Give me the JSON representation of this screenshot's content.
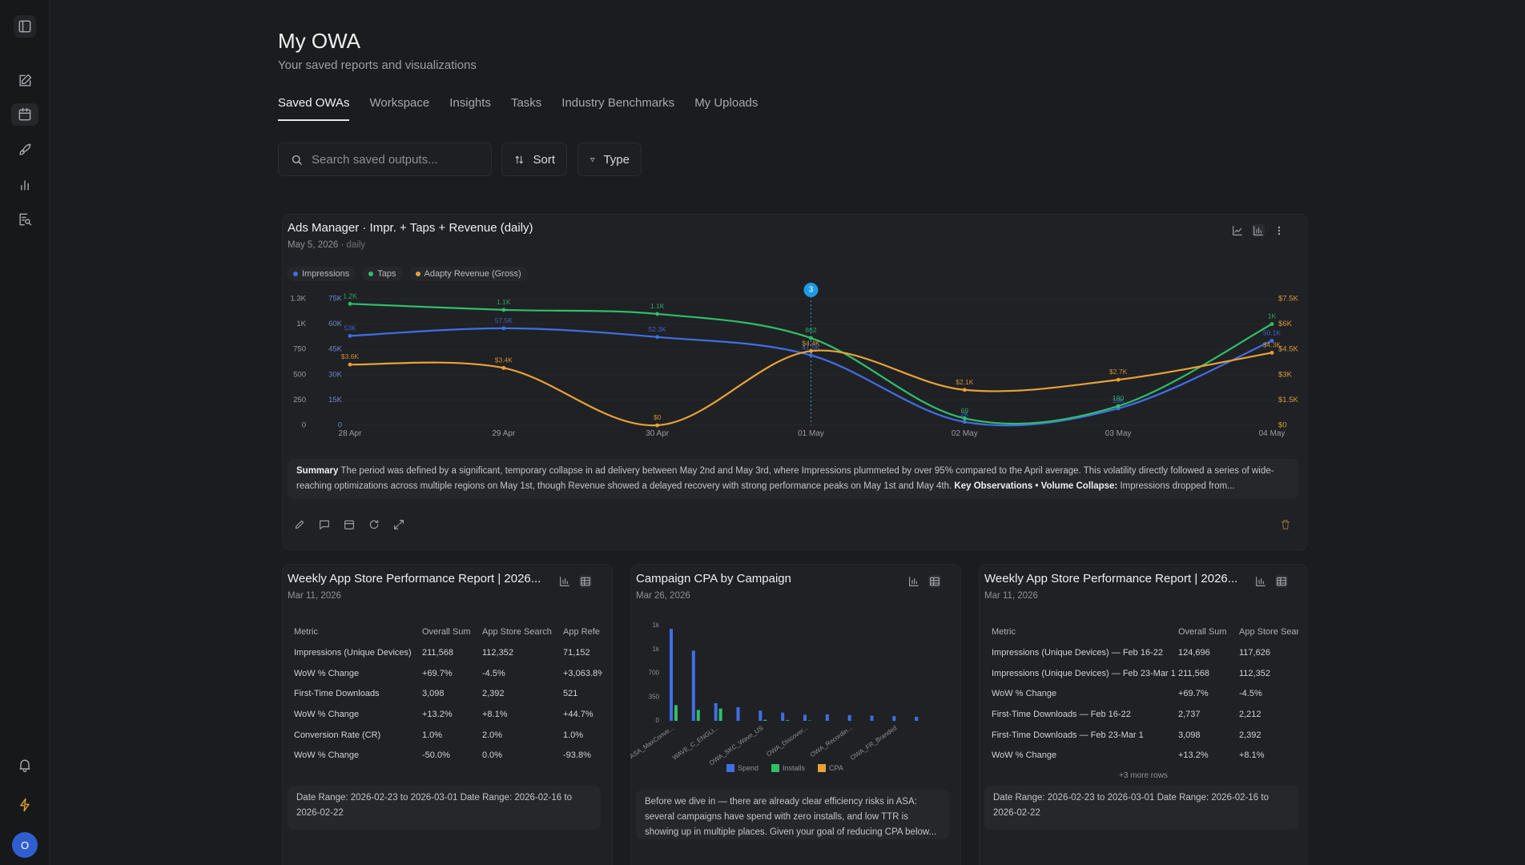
{
  "sidebar": {
    "avatar": "O"
  },
  "header": {
    "title": "My OWA",
    "subtitle": "Your saved reports and visualizations"
  },
  "tabs": [
    "Saved OWAs",
    "Workspace",
    "Insights",
    "Tasks",
    "Industry Benchmarks",
    "My Uploads"
  ],
  "toolbar": {
    "search_placeholder": "Search saved outputs...",
    "sort": "Sort",
    "type": "Type"
  },
  "cards": [
    {
      "title": "Ads Manager · Impr. + Taps + Revenue (daily)",
      "date": "May 5, 2026",
      "frequency": "daily",
      "summary": {
        "label": "Summary",
        "text": "The period was defined by a significant, temporary collapse in ad delivery between May 2nd and May 3rd, where Impressions plummeted by over 95% compared to the April average. This volatility directly followed a series of wide-reaching optimizations across multiple regions on May 1st, though Revenue showed a delayed recovery with strong performance peaks on May 1st and May 4th.",
        "key_label": "Key Observations • Volume Collapse:",
        "key_text": "Impressions dropped from..."
      }
    },
    {
      "title": "Weekly App Store Performance Report | 2026...",
      "date": "Mar 11, 2026",
      "table": {
        "columns": [
          "Metric",
          "Overall Sum",
          "App Store Search",
          "App Refe"
        ],
        "rows": [
          [
            "Impressions (Unique Devices)",
            "211,568",
            "112,352",
            "71,152"
          ],
          [
            "WoW % Change",
            "+69.7%",
            "-4.5%",
            "+3,063.8%"
          ],
          [
            "First-Time Downloads",
            "3,098",
            "2,392",
            "521"
          ],
          [
            "WoW % Change",
            "+13.2%",
            "+8.1%",
            "+44.7%"
          ],
          [
            "Conversion Rate (CR)",
            "1.0%",
            "2.0%",
            "1.0%"
          ],
          [
            "WoW % Change",
            "-50.0%",
            "0.0%",
            "-93.8%"
          ]
        ]
      },
      "footer": "Date Range: 2026-02-23 to 2026-03-01 Date Range: 2026-02-16 to 2026-02-22"
    },
    {
      "title": "Campaign CPA by Campaign",
      "date": "Mar 26, 2026",
      "summary": "Before we dive in — there are already clear efficiency risks in ASA: several campaigns have spend with zero installs, and low TTR is showing up in multiple places. Given your goal of reducing CPA below..."
    },
    {
      "title": "Weekly App Store Performance Report | 2026...",
      "date": "Mar 11, 2026",
      "table": {
        "columns": [
          "Metric",
          "Overall Sum",
          "App Store Sear"
        ],
        "rows": [
          [
            "Impressions (Unique Devices) — Feb 16-22",
            "124,696",
            "117,626"
          ],
          [
            "Impressions (Unique Devices) — Feb 23-Mar 1",
            "211,568",
            "112,352"
          ],
          [
            "WoW % Change",
            "+69.7%",
            "-4.5%"
          ],
          [
            "First-Time Downloads — Feb 16-22",
            "2,737",
            "2,212"
          ],
          [
            "First-Time Downloads — Feb 23-Mar 1",
            "3,098",
            "2,392"
          ],
          [
            "WoW % Change",
            "+13.2%",
            "+8.1%"
          ]
        ]
      },
      "more_rows": "+3 more rows",
      "footer": "Date Range: 2026-02-23 to 2026-03-01 Date Range: 2026-02-16 to 2026-02-22"
    }
  ],
  "chart_data": [
    {
      "type": "line",
      "categories": [
        "28 Apr",
        "29 Apr",
        "30 Apr",
        "01 May",
        "02 May",
        "03 May",
        "04 May"
      ],
      "series": [
        {
          "name": "Impressions",
          "color": "#3f6fe3",
          "axis": "y3",
          "values": [
            53000,
            57500,
            52300,
            41500,
            2000,
            10000,
            50100
          ],
          "value_labels": [
            "53K",
            "57.5K",
            "52.3K",
            "41.5K",
            "2K",
            "10K",
            "50.1K"
          ]
        },
        {
          "name": "Taps",
          "color": "#2fbf68",
          "axis": "y",
          "values": [
            1200,
            1140,
            1100,
            862,
            69,
            190,
            1000
          ],
          "value_labels": [
            "1.2K",
            "1.1K",
            "1.1K",
            "862",
            "69",
            "190",
            "1K"
          ]
        },
        {
          "name": "Adapty Revenue (Gross)",
          "color": "#e9a236",
          "axis": "y2",
          "values": [
            3600,
            3400,
            0,
            4400,
            2100,
            2700,
            4300
          ],
          "value_labels": [
            "$3.6K",
            "$3.4K",
            "$0",
            "$4.4K",
            "$2.1K",
            "$2.7K",
            "$4.3K"
          ]
        }
      ],
      "ylim": [
        0,
        1250
      ],
      "yticks": [
        0,
        250,
        500,
        750,
        {
          "value": 1000,
          "label": "1K"
        },
        {
          "value": 1250,
          "label": "1.3K"
        }
      ],
      "y3lim": [
        0,
        75000
      ],
      "y3ticks": [
        0,
        {
          "value": 15000,
          "label": "15K"
        },
        {
          "value": 30000,
          "label": "30K"
        },
        {
          "value": 45000,
          "label": "45K"
        },
        {
          "value": 60000,
          "label": "60K"
        },
        {
          "value": 75000,
          "label": "75K"
        }
      ],
      "y2lim": [
        0,
        7500
      ],
      "y2ticks": [
        {
          "value": 0,
          "label": "$0"
        },
        {
          "value": 1500,
          "label": "$1.5K"
        },
        {
          "value": 3000,
          "label": "$3K"
        },
        {
          "value": 4500,
          "label": "$4.5K"
        },
        {
          "value": 6000,
          "label": "$6K"
        },
        {
          "value": 7500,
          "label": "$7.5K"
        }
      ],
      "annotation": "3",
      "grid": true
    },
    {
      "type": "bar",
      "categories": [
        "ASA_MaxConve...",
        null,
        "WAVE_C_ENGLI...",
        null,
        "OWA_SKC_Wave_US",
        null,
        "OWA_Discover...",
        null,
        "OWA_Recordin...",
        null,
        "OWA_FR_Branded",
        null
      ],
      "series": [
        {
          "name": "Spend",
          "color": "#3f6fe3",
          "values": [
            1350,
            1030,
            260,
            200,
            150,
            120,
            90,
            95,
            85,
            75,
            70,
            60
          ]
        },
        {
          "name": "Installs",
          "color": "#2fbf68",
          "values": [
            230,
            160,
            180,
            0,
            15,
            10,
            5,
            0,
            0,
            0,
            0,
            0
          ]
        },
        {
          "name": "CPA",
          "color": "#e9a236",
          "values": [
            0,
            0,
            0,
            0,
            0,
            0,
            0,
            0,
            0,
            0,
            0,
            0
          ]
        }
      ],
      "ylim": [
        0,
        1400
      ],
      "yticks": [
        0,
        350,
        700,
        {
          "value": 1050,
          "label": "1k"
        },
        {
          "value": 1400,
          "label": "1k"
        }
      ],
      "grid": false
    }
  ]
}
